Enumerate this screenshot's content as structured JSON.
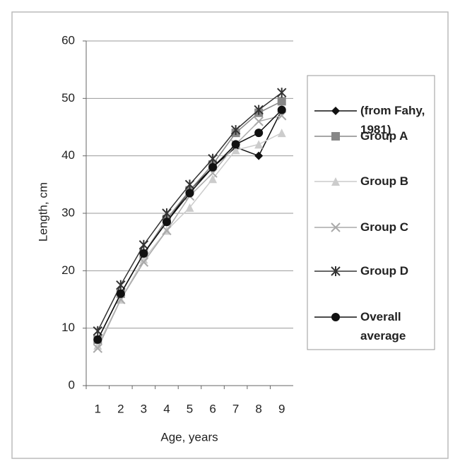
{
  "chart_data": {
    "type": "line",
    "y_label": "Length, cm",
    "x_label": "Age, years",
    "categories": [
      "1",
      "2",
      "3",
      "4",
      "5",
      "6",
      "7",
      "8",
      "9"
    ],
    "ylim": [
      0,
      60
    ],
    "yticks": [
      0,
      10,
      20,
      30,
      40,
      50,
      60
    ],
    "grid": true,
    "series": [
      {
        "name": "(from Fahy, 1981)",
        "color": "#111111",
        "marker": "diamond",
        "values": [
          8,
          16,
          23,
          28.5,
          34,
          38,
          41.5,
          40,
          48
        ]
      },
      {
        "name": "Group A",
        "color": "#888888",
        "marker": "square",
        "values": [
          8,
          16,
          23,
          29,
          34,
          38.5,
          44,
          47.5,
          49.5
        ]
      },
      {
        "name": "Group B",
        "color": "#cccccc",
        "marker": "triangle",
        "values": [
          7,
          15,
          22,
          27,
          31,
          36,
          41,
          42,
          44
        ]
      },
      {
        "name": "Group C",
        "color": "#aaaaaa",
        "marker": "x",
        "values": [
          6.5,
          15,
          21.5,
          27,
          33,
          37,
          42,
          46,
          47
        ]
      },
      {
        "name": "Group D",
        "color": "#333333",
        "marker": "star",
        "values": [
          9.5,
          17.5,
          24.5,
          30,
          35,
          39.5,
          44.5,
          48,
          51
        ]
      },
      {
        "name": "Overall average",
        "color": "#111111",
        "marker": "circle",
        "values": [
          8,
          16,
          23,
          28.5,
          33.5,
          38,
          42,
          44,
          48
        ]
      }
    ]
  }
}
